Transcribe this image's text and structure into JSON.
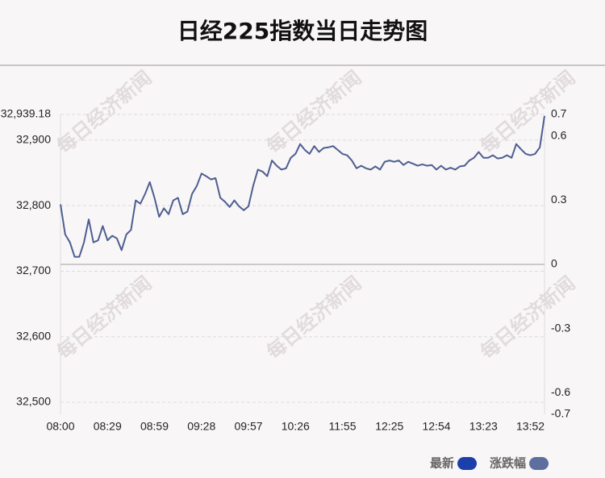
{
  "chart_data": {
    "type": "line",
    "title": "日经225指数当日走势图",
    "watermark": "每日经济新闻",
    "categories": [
      "08:00",
      null,
      null,
      null,
      null,
      null,
      null,
      null,
      null,
      null,
      "08:29",
      null,
      null,
      null,
      null,
      null,
      null,
      null,
      null,
      null,
      "08:59",
      null,
      null,
      null,
      null,
      null,
      null,
      null,
      null,
      null,
      "09:28",
      null,
      null,
      null,
      null,
      null,
      null,
      null,
      null,
      null,
      "09:57",
      null,
      null,
      null,
      null,
      null,
      null,
      null,
      null,
      null,
      "10:26",
      null,
      null,
      null,
      null,
      null,
      null,
      null,
      null,
      null,
      "11:55",
      null,
      null,
      null,
      null,
      null,
      null,
      null,
      null,
      null,
      "12:25",
      null,
      null,
      null,
      null,
      null,
      null,
      null,
      null,
      null,
      "12:54",
      null,
      null,
      null,
      null,
      null,
      null,
      null,
      null,
      null,
      "13:23",
      null,
      null,
      null,
      null,
      null,
      null,
      null,
      null,
      null,
      "13:52",
      null,
      null,
      null
    ],
    "series": [
      {
        "name": "最新",
        "color": "#4d5f8f",
        "values": [
          32802,
          32756,
          32744,
          32722,
          32722,
          32744,
          32779,
          32744,
          32747,
          32769,
          32747,
          32754,
          32750,
          32732,
          32756,
          32763,
          32808,
          32803,
          32818,
          32836,
          32812,
          32783,
          32796,
          32787,
          32808,
          32812,
          32787,
          32791,
          32818,
          32830,
          32849,
          32845,
          32840,
          32842,
          32812,
          32806,
          32798,
          32808,
          32799,
          32793,
          32799,
          32830,
          32855,
          32852,
          32845,
          32869,
          32861,
          32855,
          32857,
          32873,
          32879,
          32894,
          32885,
          32879,
          32891,
          32882,
          32888,
          32889,
          32891,
          32885,
          32879,
          32877,
          32869,
          32857,
          32861,
          32857,
          32855,
          32860,
          32855,
          32867,
          32869,
          32867,
          32869,
          32862,
          32867,
          32864,
          32861,
          32863,
          32861,
          32862,
          32855,
          32861,
          32855,
          32858,
          32855,
          32860,
          32861,
          32869,
          32873,
          32882,
          32873,
          32873,
          32877,
          32872,
          32873,
          32877,
          32873,
          32894,
          32886,
          32879,
          32877,
          32879,
          32889,
          32937
        ]
      }
    ],
    "legend": [
      {
        "name": "最新",
        "color": "#1c3faa"
      },
      {
        "name": "涨跌幅",
        "color": "#5c6f9e"
      }
    ],
    "ylim": [
      32481.6,
      32939.18
    ],
    "yticks": [
      {
        "value": 32500,
        "label": "32,500"
      },
      {
        "value": 32600,
        "label": "32,600"
      },
      {
        "value": 32700,
        "label": "32,700"
      },
      {
        "value": 32800,
        "label": "32,800"
      },
      {
        "value": 32900,
        "label": "32,900"
      },
      {
        "value": 32939.18,
        "label": "32,939.18"
      }
    ],
    "y2lim": [
      -0.7,
      0.7
    ],
    "y2ticks": [
      -0.7,
      -0.6,
      -0.3,
      0,
      0.3,
      0.6,
      0.7
    ],
    "grid": true
  }
}
